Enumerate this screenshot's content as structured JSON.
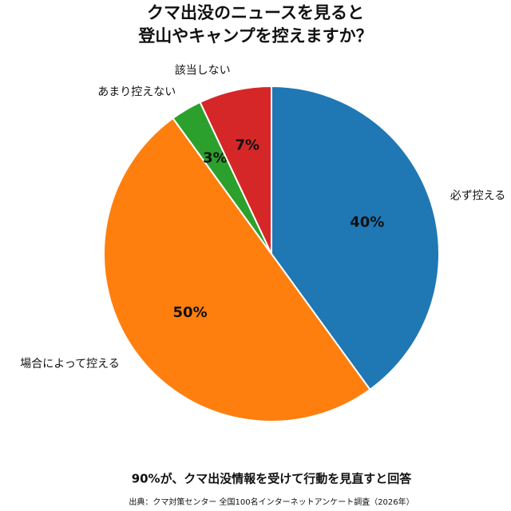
{
  "chart_data": {
    "type": "pie",
    "title": [
      "クマ出没のニュースを見ると",
      "登山やキャンプを控えますか？"
    ],
    "categories": [
      "必ず控える",
      "場合によって控える",
      "あまり控えない",
      "該当しない"
    ],
    "values": [
      40,
      50,
      3,
      7
    ],
    "value_labels": [
      "40%",
      "50%",
      "3%",
      "7%"
    ],
    "colors": [
      "#1f77b4",
      "#ff7f0e",
      "#2ca02c",
      "#d62728"
    ],
    "subtitle": "90%が、クマ出没情報を受けて行動を見直すと回答",
    "source": "出典：クマ対策センター 全国100名インターネットアンケート調査（2026年）"
  }
}
